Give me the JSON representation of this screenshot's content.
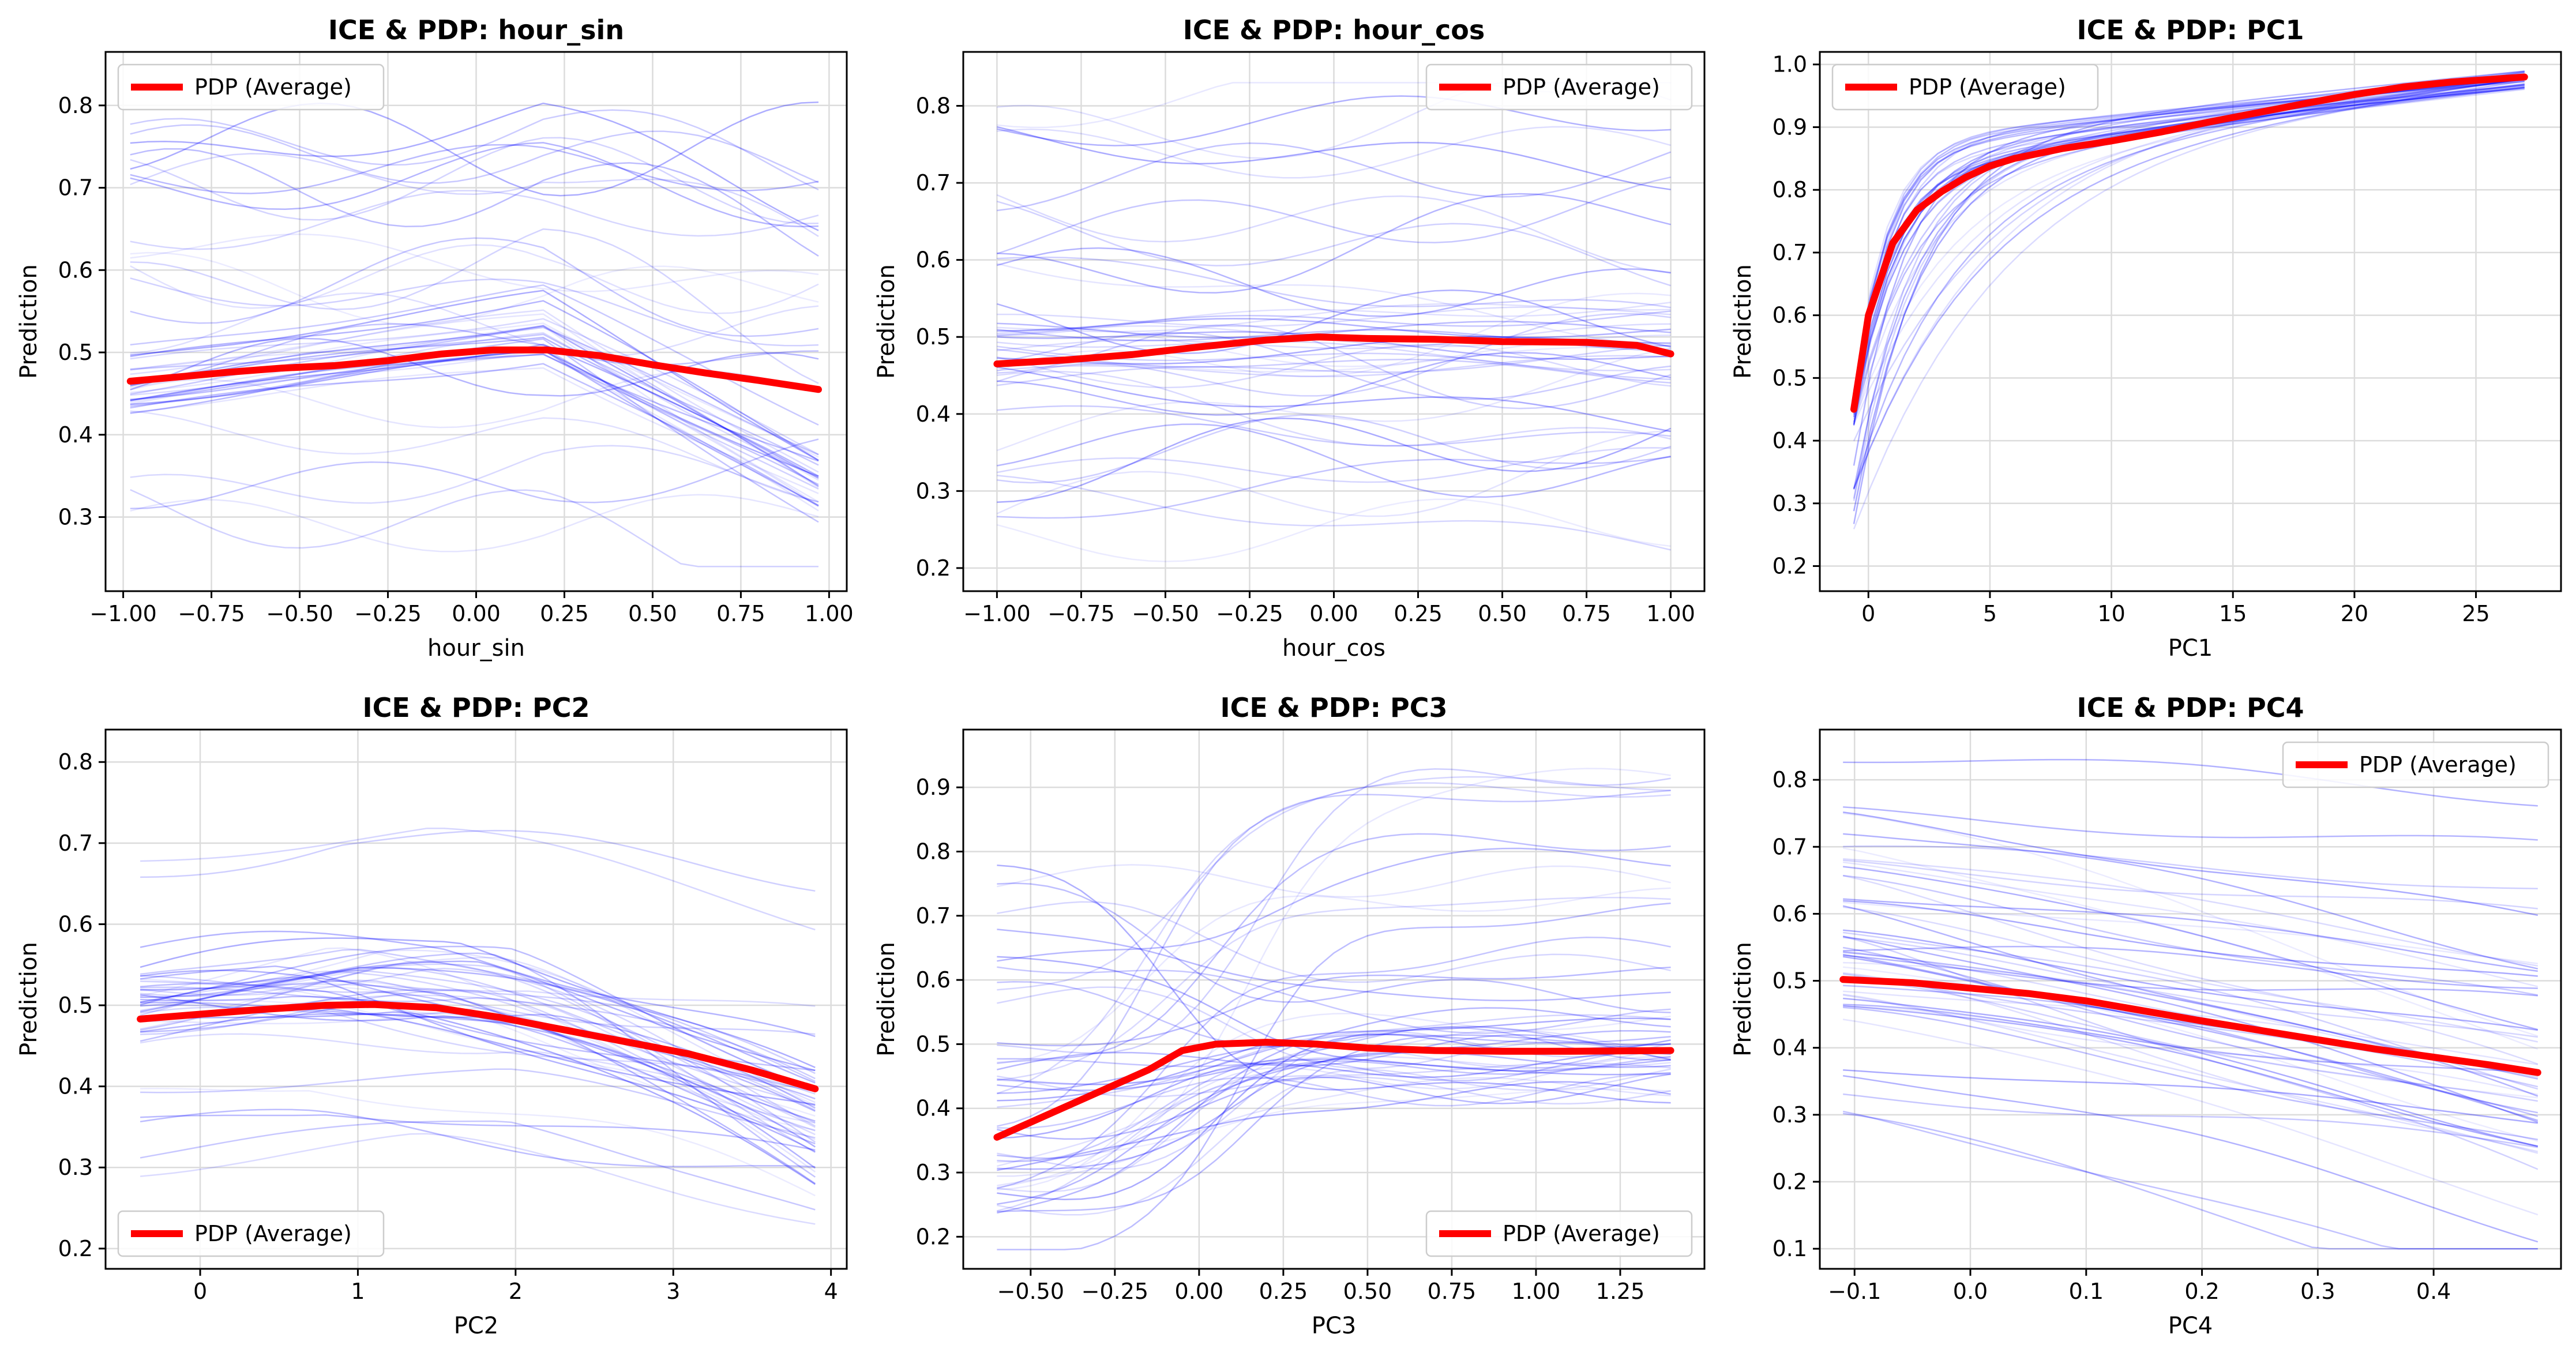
{
  "figure": {
    "background": "#ffffff",
    "colors": {
      "pdp": "#ff0000",
      "ice": "#0000ff",
      "grid": "#dcdcdc"
    }
  },
  "chart_data": [
    {
      "type": "line",
      "title": "ICE & PDP: hour_sin",
      "xlabel": "hour_sin",
      "ylabel": "Prediction",
      "xlim": [
        -1.05,
        1.05
      ],
      "ylim": [
        0.21,
        0.865
      ],
      "xticks": [
        -1.0,
        -0.75,
        -0.5,
        -0.25,
        0.0,
        0.25,
        0.5,
        0.75,
        1.0
      ],
      "xtick_labels": [
        "−1.00",
        "−0.75",
        "−0.50",
        "−0.25",
        "0.00",
        "0.25",
        "0.50",
        "0.75",
        "1.00"
      ],
      "yticks": [
        0.3,
        0.4,
        0.5,
        0.6,
        0.7,
        0.8
      ],
      "ytick_labels": [
        "0.3",
        "0.4",
        "0.5",
        "0.6",
        "0.7",
        "0.8"
      ],
      "grid": true,
      "legend": {
        "position": "upper-left",
        "label": "PDP (Average)"
      },
      "series": [
        {
          "name": "PDP (Average)",
          "x": [
            -0.98,
            -0.85,
            -0.7,
            -0.55,
            -0.4,
            -0.25,
            -0.1,
            0.05,
            0.2,
            0.35,
            0.5,
            0.65,
            0.8,
            0.97
          ],
          "values": [
            0.465,
            0.47,
            0.476,
            0.481,
            0.484,
            0.49,
            0.498,
            0.503,
            0.503,
            0.496,
            0.485,
            0.475,
            0.466,
            0.455
          ]
        }
      ],
      "ice_shape": "hump",
      "ice_count": 50,
      "ice_range": [
        0.24,
        0.835
      ]
    },
    {
      "type": "line",
      "title": "ICE & PDP: hour_cos",
      "xlabel": "hour_cos",
      "ylabel": "Prediction",
      "xlim": [
        -1.1,
        1.1
      ],
      "ylim": [
        0.17,
        0.87
      ],
      "xticks": [
        -1.0,
        -0.75,
        -0.5,
        -0.25,
        0.0,
        0.25,
        0.5,
        0.75,
        1.0
      ],
      "xtick_labels": [
        "−1.00",
        "−0.75",
        "−0.50",
        "−0.25",
        "0.00",
        "0.25",
        "0.50",
        "0.75",
        "1.00"
      ],
      "yticks": [
        0.2,
        0.3,
        0.4,
        0.5,
        0.6,
        0.7,
        0.8
      ],
      "ytick_labels": [
        "0.2",
        "0.3",
        "0.4",
        "0.5",
        "0.6",
        "0.7",
        "0.8"
      ],
      "grid": true,
      "legend": {
        "position": "upper-right",
        "label": "PDP (Average)"
      },
      "series": [
        {
          "name": "PDP (Average)",
          "x": [
            -1.0,
            -0.8,
            -0.6,
            -0.4,
            -0.2,
            -0.05,
            0.1,
            0.3,
            0.5,
            0.75,
            0.9,
            1.0
          ],
          "values": [
            0.465,
            0.47,
            0.477,
            0.487,
            0.496,
            0.5,
            0.498,
            0.497,
            0.494,
            0.493,
            0.489,
            0.478
          ]
        }
      ],
      "ice_shape": "flat",
      "ice_count": 50,
      "ice_range": [
        0.2,
        0.83
      ]
    },
    {
      "type": "line",
      "title": "ICE & PDP: PC1",
      "xlabel": "PC1",
      "ylabel": "Prediction",
      "xlim": [
        -2.0,
        28.5
      ],
      "ylim": [
        0.16,
        1.02
      ],
      "xticks": [
        0,
        5,
        10,
        15,
        20,
        25
      ],
      "xtick_labels": [
        "0",
        "5",
        "10",
        "15",
        "20",
        "25"
      ],
      "yticks": [
        0.2,
        0.3,
        0.4,
        0.5,
        0.6,
        0.7,
        0.8,
        0.9,
        1.0
      ],
      "ytick_labels": [
        "0.2",
        "0.3",
        "0.4",
        "0.5",
        "0.6",
        "0.7",
        "0.8",
        "0.9",
        "1.0"
      ],
      "grid": true,
      "legend": {
        "position": "upper-left",
        "label": "PDP (Average)"
      },
      "series": [
        {
          "name": "PDP (Average)",
          "x": [
            -0.6,
            0.0,
            1.0,
            2.0,
            3.0,
            4.0,
            5.0,
            6.0,
            8.0,
            10.0,
            12.0,
            14.0,
            16.0,
            18.0,
            20.0,
            22.0,
            24.0,
            27.0
          ],
          "values": [
            0.45,
            0.6,
            0.715,
            0.768,
            0.797,
            0.82,
            0.838,
            0.85,
            0.866,
            0.878,
            0.892,
            0.908,
            0.923,
            0.938,
            0.952,
            0.964,
            0.972,
            0.98
          ]
        }
      ],
      "ice_shape": "saturating",
      "ice_count": 40,
      "ice_range": [
        0.2,
        0.99
      ]
    },
    {
      "type": "line",
      "title": "ICE & PDP: PC2",
      "xlabel": "PC2",
      "ylabel": "Prediction",
      "xlim": [
        -0.6,
        4.1
      ],
      "ylim": [
        0.175,
        0.84
      ],
      "xticks": [
        0,
        1,
        2,
        3,
        4
      ],
      "xtick_labels": [
        "0",
        "1",
        "2",
        "3",
        "4"
      ],
      "yticks": [
        0.2,
        0.3,
        0.4,
        0.5,
        0.6,
        0.7,
        0.8
      ],
      "ytick_labels": [
        "0.2",
        "0.3",
        "0.4",
        "0.5",
        "0.6",
        "0.7",
        "0.8"
      ],
      "grid": true,
      "legend": {
        "position": "lower-left",
        "label": "PDP (Average)"
      },
      "series": [
        {
          "name": "PDP (Average)",
          "x": [
            -0.38,
            0.0,
            0.4,
            0.8,
            1.1,
            1.5,
            1.9,
            2.3,
            2.7,
            3.1,
            3.5,
            3.9
          ],
          "values": [
            0.483,
            0.489,
            0.495,
            0.5,
            0.501,
            0.497,
            0.485,
            0.47,
            0.455,
            0.44,
            0.42,
            0.397
          ]
        }
      ],
      "ice_shape": "decline",
      "ice_count": 50,
      "ice_range": [
        0.2,
        0.815
      ]
    },
    {
      "type": "line",
      "title": "ICE & PDP: PC3",
      "xlabel": "PC3",
      "ylabel": "Prediction",
      "xlim": [
        -0.7,
        1.5
      ],
      "ylim": [
        0.15,
        0.99
      ],
      "xticks": [
        -0.5,
        -0.25,
        0.0,
        0.25,
        0.5,
        0.75,
        1.0,
        1.25
      ],
      "xtick_labels": [
        "−0.50",
        "−0.25",
        "0.00",
        "0.25",
        "0.50",
        "0.75",
        "1.00",
        "1.25"
      ],
      "yticks": [
        0.2,
        0.3,
        0.4,
        0.5,
        0.6,
        0.7,
        0.8,
        0.9
      ],
      "ytick_labels": [
        "0.2",
        "0.3",
        "0.4",
        "0.5",
        "0.6",
        "0.7",
        "0.8",
        "0.9"
      ],
      "grid": true,
      "legend": {
        "position": "lower-right",
        "label": "PDP (Average)"
      },
      "series": [
        {
          "name": "PDP (Average)",
          "x": [
            -0.6,
            -0.45,
            -0.3,
            -0.15,
            -0.05,
            0.05,
            0.2,
            0.35,
            0.5,
            0.7,
            0.9,
            1.1,
            1.4
          ],
          "values": [
            0.355,
            0.39,
            0.425,
            0.46,
            0.49,
            0.5,
            0.503,
            0.5,
            0.494,
            0.49,
            0.489,
            0.489,
            0.49
          ]
        }
      ],
      "ice_shape": "rise-plateau",
      "ice_count": 50,
      "ice_range": [
        0.18,
        0.96
      ]
    },
    {
      "type": "line",
      "title": "ICE & PDP: PC4",
      "xlabel": "PC4",
      "ylabel": "Prediction",
      "xlim": [
        -0.13,
        0.51
      ],
      "ylim": [
        0.07,
        0.875
      ],
      "xticks": [
        -0.1,
        0.0,
        0.1,
        0.2,
        0.3,
        0.4
      ],
      "xtick_labels": [
        "−0.1",
        "0.0",
        "0.1",
        "0.2",
        "0.3",
        "0.4"
      ],
      "yticks": [
        0.1,
        0.2,
        0.3,
        0.4,
        0.5,
        0.6,
        0.7,
        0.8
      ],
      "ytick_labels": [
        "0.1",
        "0.2",
        "0.3",
        "0.4",
        "0.5",
        "0.6",
        "0.7",
        "0.8"
      ],
      "grid": true,
      "legend": {
        "position": "upper-right",
        "label": "PDP (Average)"
      },
      "series": [
        {
          "name": "PDP (Average)",
          "x": [
            -0.11,
            -0.05,
            0.0,
            0.05,
            0.1,
            0.15,
            0.2,
            0.25,
            0.3,
            0.35,
            0.4,
            0.45,
            0.49
          ],
          "values": [
            0.502,
            0.497,
            0.489,
            0.481,
            0.47,
            0.455,
            0.44,
            0.426,
            0.412,
            0.398,
            0.386,
            0.374,
            0.363
          ]
        }
      ],
      "ice_shape": "decreasing",
      "ice_count": 50,
      "ice_range": [
        0.1,
        0.845
      ]
    }
  ]
}
